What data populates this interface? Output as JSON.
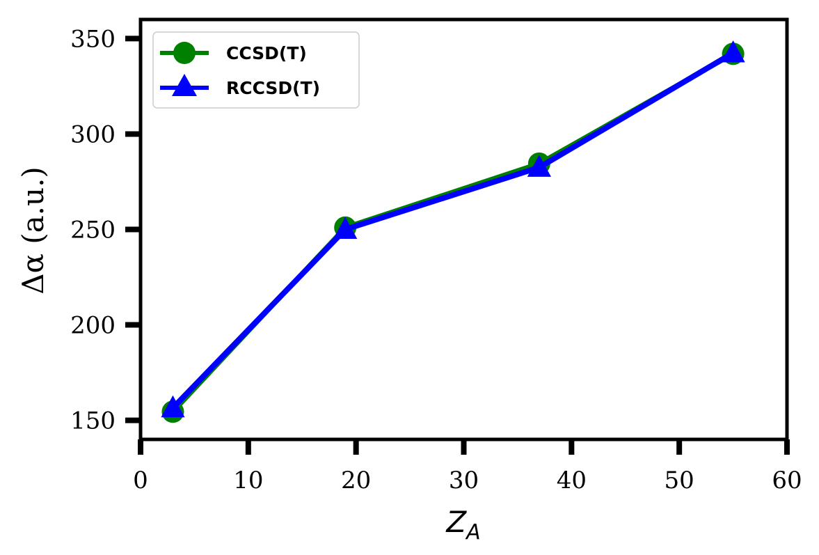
{
  "chart_data": {
    "type": "line",
    "xlabel": "Z_A",
    "ylabel": "Δα (a.u.)",
    "xlim": [
      0,
      60
    ],
    "ylim": [
      140,
      360
    ],
    "xticks": [
      0,
      10,
      20,
      30,
      40,
      50,
      60
    ],
    "yticks": [
      150,
      200,
      250,
      300,
      350
    ],
    "grid": false,
    "legend_position": "top-left",
    "x": [
      3,
      19,
      37,
      55
    ],
    "series": [
      {
        "name": "CCSD(T)",
        "color": "#008000",
        "marker": "circle",
        "values": [
          154.5,
          251,
          284.5,
          342
        ]
      },
      {
        "name": "RCCSD(T)",
        "color": "#0000ff",
        "marker": "triangle",
        "values": [
          156.5,
          250,
          282.5,
          342.5
        ]
      }
    ]
  }
}
